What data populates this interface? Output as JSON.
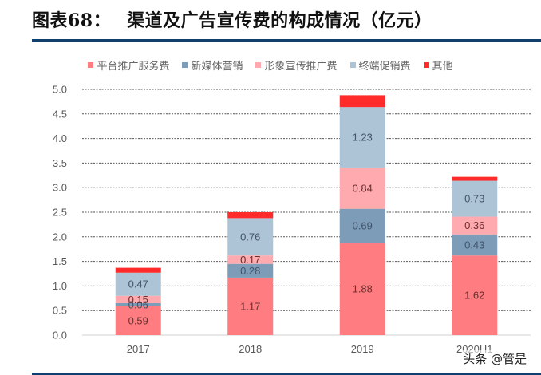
{
  "header": {
    "label": "图表68：",
    "title": "渠道及广告宣传费的构成情况（亿元）"
  },
  "watermark": "头条 @管是",
  "chart_data": {
    "type": "bar",
    "stacked": true,
    "title": "渠道及广告宣传费的构成情况（亿元）",
    "xlabel": "",
    "ylabel": "",
    "ylim": [
      0,
      5.0
    ],
    "yticks": [
      "0.0",
      "0.5",
      "1.0",
      "1.5",
      "2.0",
      "2.5",
      "3.0",
      "3.5",
      "4.0",
      "4.5",
      "5.0"
    ],
    "grid": true,
    "legend_position": "top-center",
    "categories": [
      "2017",
      "2018",
      "2019",
      "2020H1"
    ],
    "series": [
      {
        "name": "平台推广服务费",
        "color": "#ff7c80",
        "label_color": "dark",
        "values": [
          0.59,
          1.17,
          1.88,
          1.62
        ],
        "labels": [
          "0.59",
          "1.17",
          "1.88",
          "1.62"
        ]
      },
      {
        "name": "新媒体营销",
        "color": "#7c9cb8",
        "label_color": "blue",
        "values": [
          0.06,
          0.28,
          0.69,
          0.43
        ],
        "labels": [
          "0.06",
          "0.28",
          "0.69",
          "0.43"
        ]
      },
      {
        "name": "形象宣传推广费",
        "color": "#ffaaae",
        "label_color": "dark",
        "values": [
          0.15,
          0.17,
          0.84,
          0.36
        ],
        "labels": [
          "0.15",
          "0.17",
          "0.84",
          "0.36"
        ]
      },
      {
        "name": "终端促销费",
        "color": "#adc3d6",
        "label_color": "blue",
        "values": [
          0.47,
          0.76,
          1.23,
          0.73
        ],
        "labels": [
          "0.47",
          "0.76",
          "1.23",
          "0.73"
        ]
      },
      {
        "name": "其他",
        "color": "#ff2a2a",
        "label_color": "none",
        "values": [
          0.1,
          0.12,
          0.24,
          0.08
        ],
        "labels": [
          "",
          "",
          "",
          ""
        ]
      }
    ]
  }
}
